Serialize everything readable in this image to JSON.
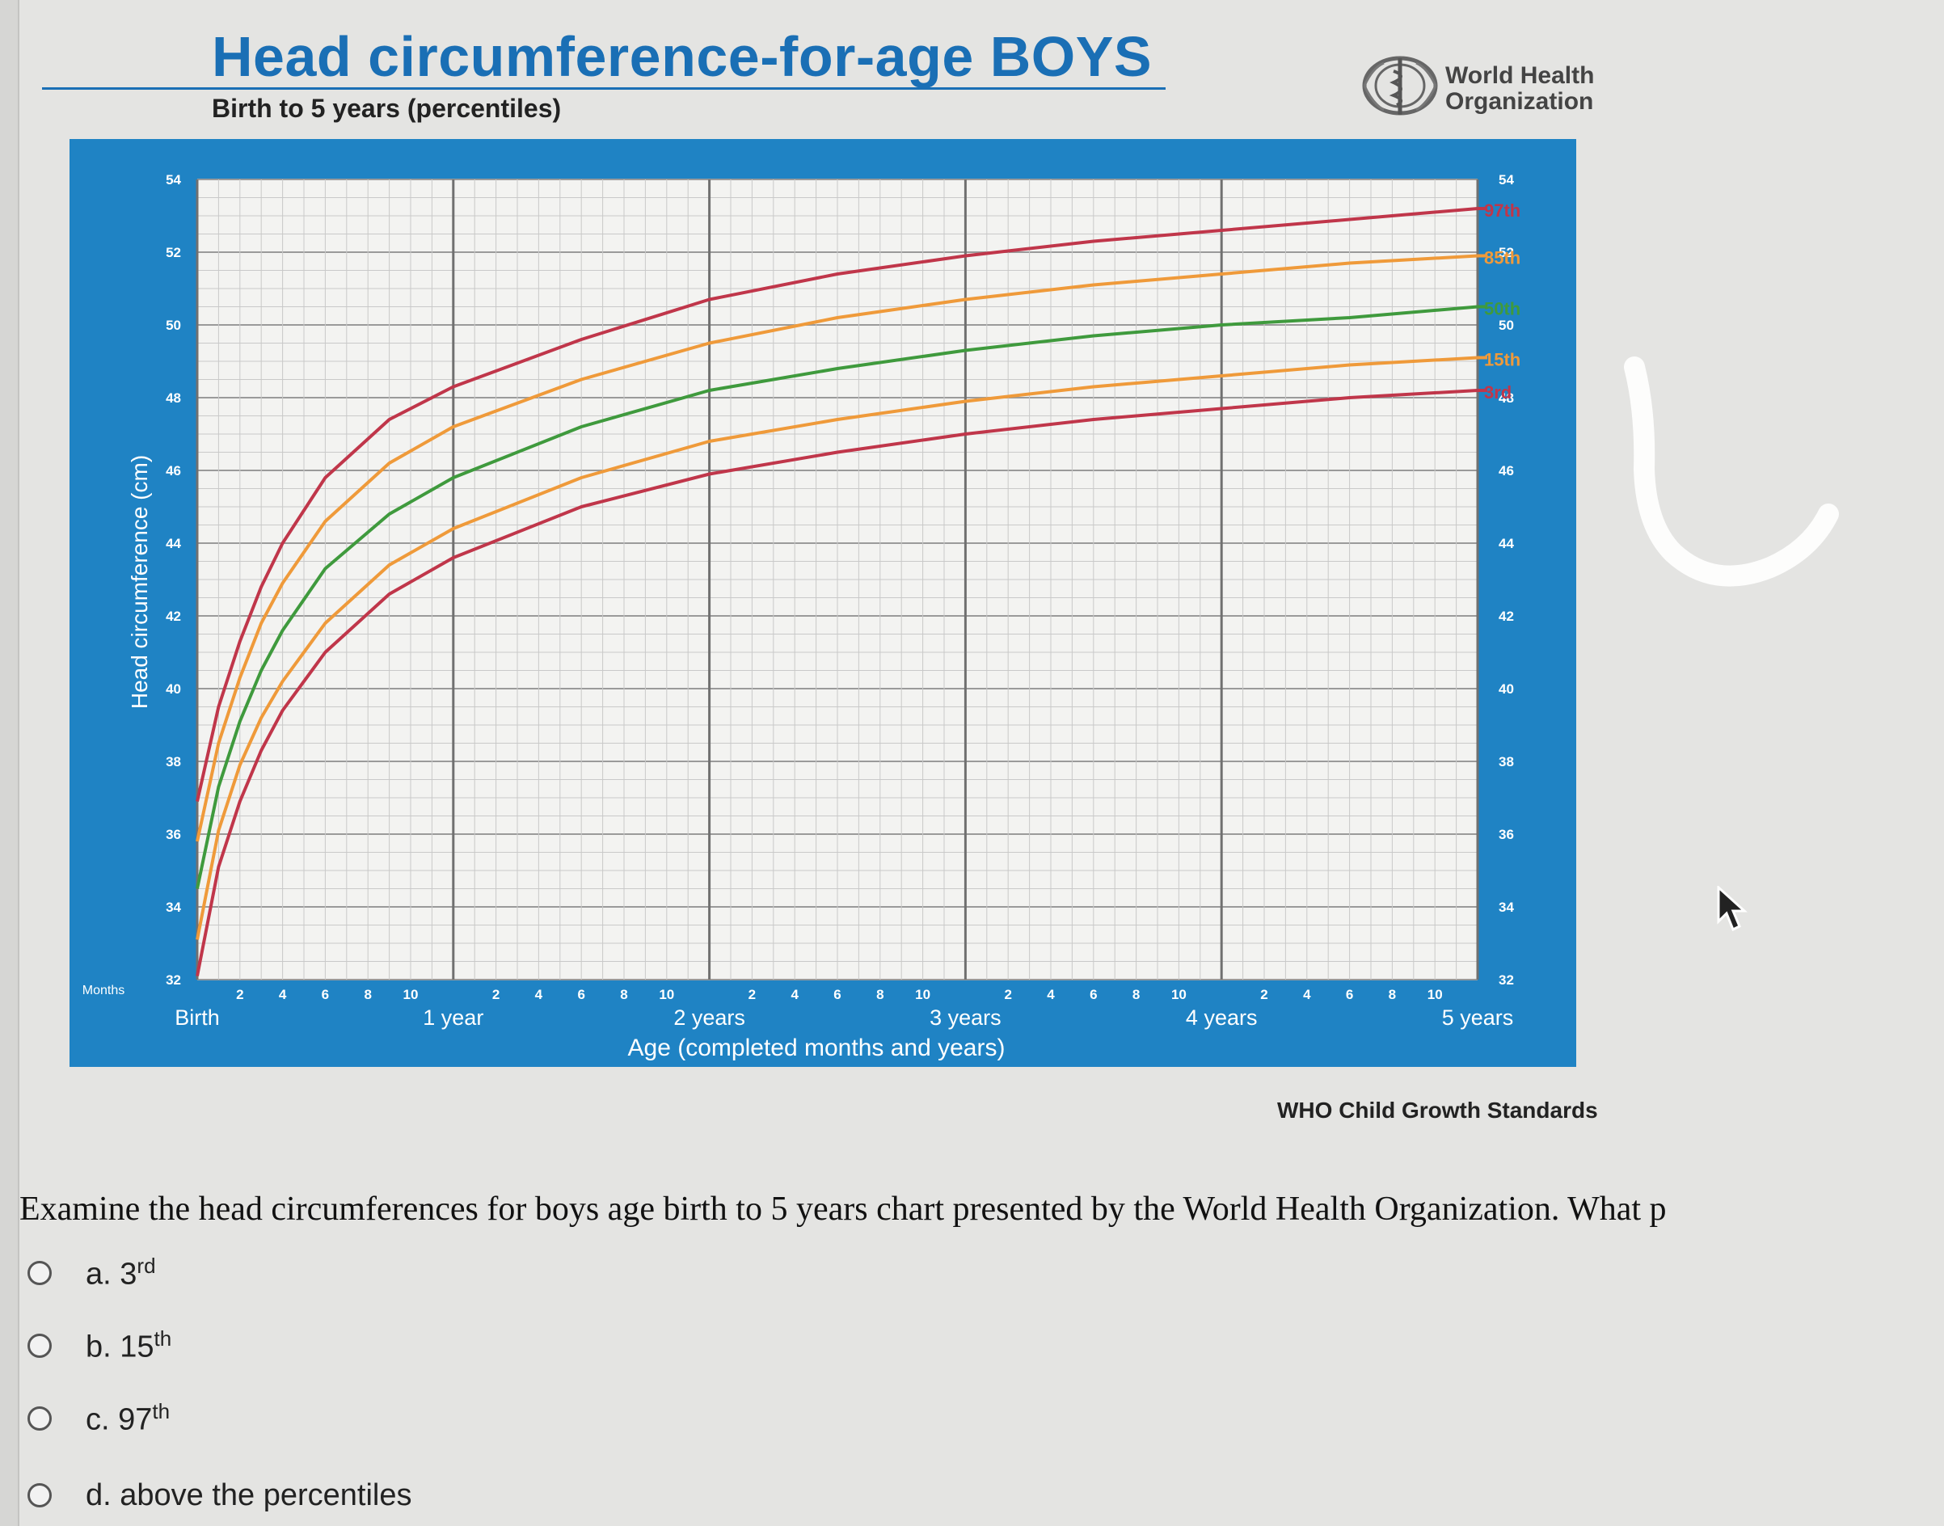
{
  "chart_header": {
    "title": "Head circumference-for-age  BOYS",
    "subtitle": "Birth to 5 years (percentiles)",
    "org_line1": "World Health",
    "org_line2": "Organization",
    "credit": "WHO Child Growth Standards"
  },
  "colors": {
    "title_blue": "#1a6fb5",
    "panel_blue": "#1f83c4",
    "grid_bg": "#f3f3f1",
    "p3": "#c0364a",
    "p15": "#ef9a3a",
    "p50": "#3f9a3d",
    "p85": "#ef9a3a",
    "p97": "#c0364a"
  },
  "chart_data": {
    "type": "line",
    "title": "Head circumference-for-age  BOYS",
    "subtitle": "Birth to 5 years (percentiles)",
    "xlabel": "Age (completed months and years)",
    "ylabel": "Head circumference (cm)",
    "x_unit": "months",
    "xlim": [
      0,
      60
    ],
    "ylim": [
      32,
      54
    ],
    "y_ticks": [
      "32",
      "34",
      "36",
      "38",
      "40",
      "42",
      "44",
      "46",
      "48",
      "50",
      "52",
      "54"
    ],
    "month_label": "Months",
    "month_ticks": [
      "2",
      "4",
      "6",
      "8",
      "10"
    ],
    "year_labels": [
      "Birth",
      "1 year",
      "2 years",
      "3 years",
      "4 years",
      "5 years"
    ],
    "grid": true,
    "x": [
      0,
      1,
      2,
      3,
      4,
      6,
      9,
      12,
      18,
      24,
      30,
      36,
      42,
      48,
      54,
      60
    ],
    "series": [
      {
        "name": "3rd",
        "key": "p3",
        "values": [
          32.1,
          35.1,
          36.9,
          38.3,
          39.4,
          41.0,
          42.6,
          43.6,
          45.0,
          45.9,
          46.5,
          47.0,
          47.4,
          47.7,
          48.0,
          48.2
        ]
      },
      {
        "name": "15th",
        "key": "p15",
        "values": [
          33.1,
          36.1,
          37.9,
          39.2,
          40.2,
          41.8,
          43.4,
          44.4,
          45.8,
          46.8,
          47.4,
          47.9,
          48.3,
          48.6,
          48.9,
          49.1
        ]
      },
      {
        "name": "50th",
        "key": "p50",
        "values": [
          34.5,
          37.3,
          39.1,
          40.5,
          41.6,
          43.3,
          44.8,
          45.8,
          47.2,
          48.2,
          48.8,
          49.3,
          49.7,
          50.0,
          50.2,
          50.5
        ]
      },
      {
        "name": "85th",
        "key": "p85",
        "values": [
          35.8,
          38.5,
          40.3,
          41.8,
          42.9,
          44.6,
          46.2,
          47.2,
          48.5,
          49.5,
          50.2,
          50.7,
          51.1,
          51.4,
          51.7,
          51.9
        ]
      },
      {
        "name": "97th",
        "key": "p97",
        "values": [
          36.9,
          39.5,
          41.3,
          42.8,
          44.0,
          45.8,
          47.4,
          48.3,
          49.6,
          50.7,
          51.4,
          51.9,
          52.3,
          52.6,
          52.9,
          53.2
        ]
      }
    ]
  },
  "question": {
    "text": "Examine the head circumferences for boys age birth to 5 years chart presented by the World Health Organization. What p",
    "options": [
      {
        "letter": "a.",
        "value": "3",
        "sup": "rd"
      },
      {
        "letter": "b.",
        "value": "15",
        "sup": "th"
      },
      {
        "letter": "c.",
        "value": "97",
        "sup": "th"
      },
      {
        "letter": "d.",
        "value": "above the percentiles",
        "sup": ""
      }
    ]
  }
}
